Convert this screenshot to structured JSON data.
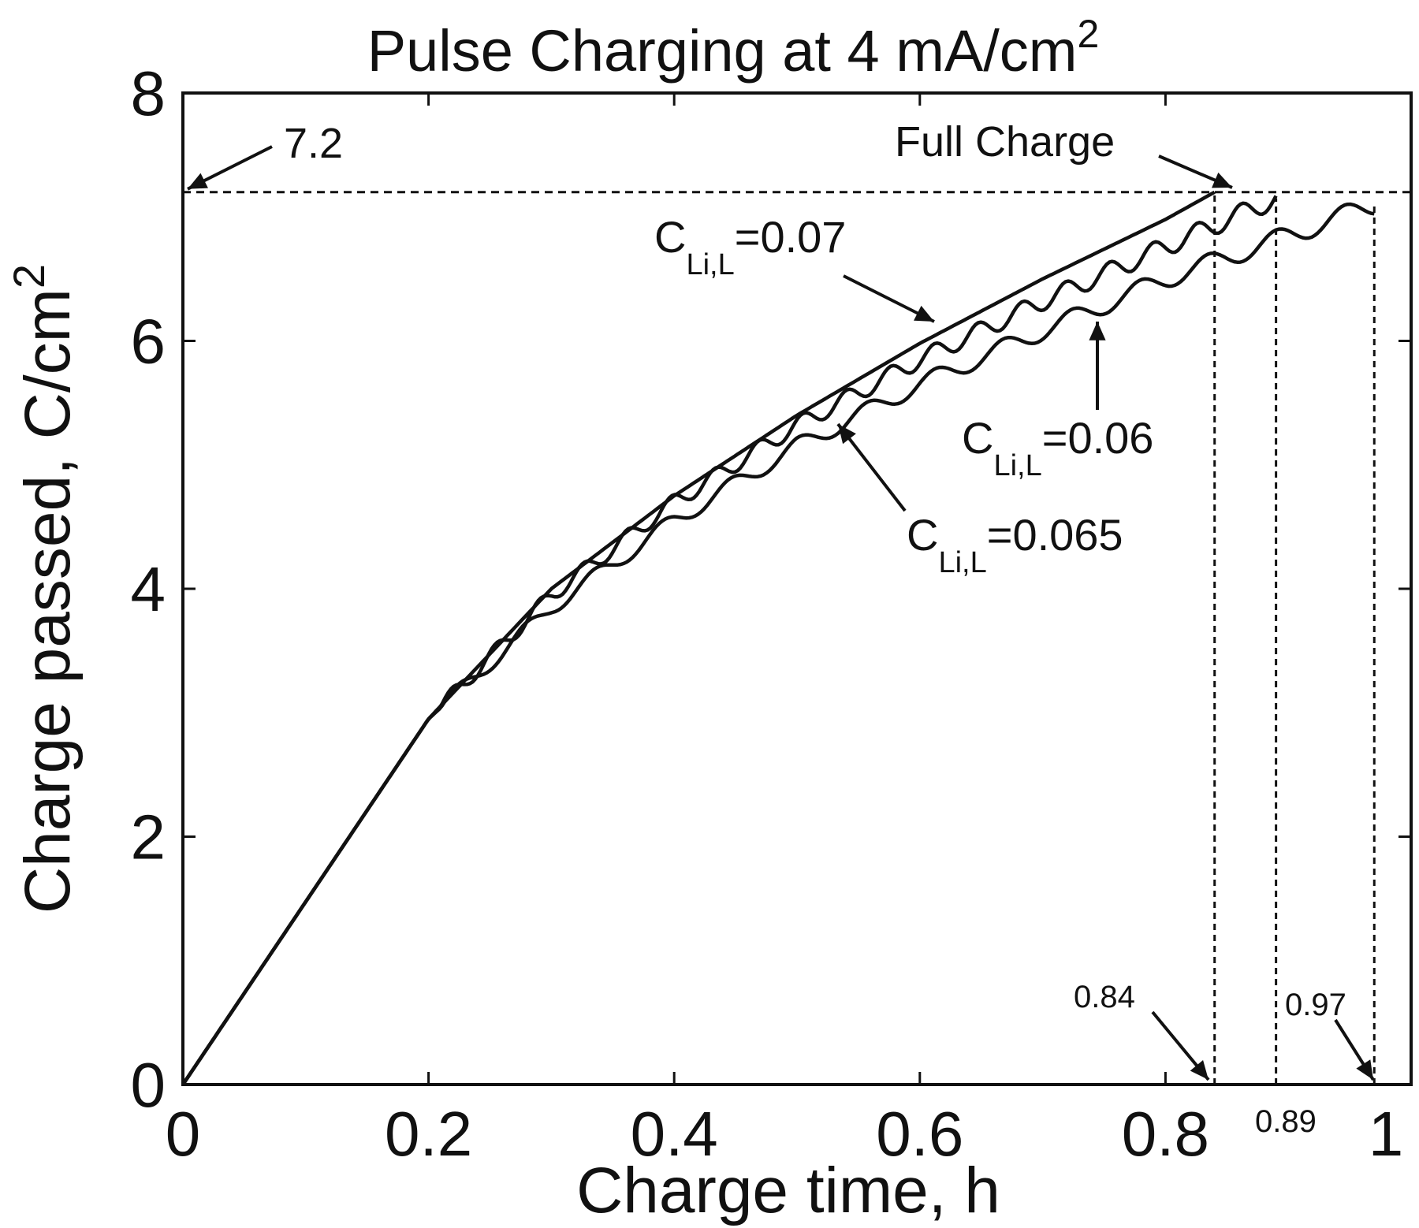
{
  "chart_data": {
    "type": "line",
    "title": "Pulse Charging at 4 mA/cm",
    "title_sup": "2",
    "xlabel": "Charge time, h",
    "ylabel": "Charge passed, C/cm",
    "ylabel_sup": "2",
    "xlim": [
      0,
      1
    ],
    "ylim": [
      0,
      8
    ],
    "xticks": [
      0,
      0.2,
      0.4,
      0.6,
      0.8,
      1
    ],
    "xtick_labels": [
      "0",
      "0.2",
      "0.4",
      "0.6",
      "0.8",
      "1"
    ],
    "yticks": [
      0,
      2,
      4,
      6,
      8
    ],
    "ytick_labels": [
      "0",
      "2",
      "4",
      "6",
      "8"
    ],
    "grid": false,
    "series": [
      {
        "label_main": "C",
        "label_sub": "Li,L",
        "label_value": "=0.07",
        "x": [
          0,
          0.2,
          0.3,
          0.4,
          0.5,
          0.6,
          0.7,
          0.8,
          0.84
        ],
        "y": [
          0,
          2.95,
          4.0,
          4.75,
          5.4,
          5.98,
          6.5,
          6.98,
          7.2
        ],
        "steps": 0
      },
      {
        "label_main": "C",
        "label_sub": "Li,L",
        "label_value": "=0.065",
        "x": [
          0,
          0.2,
          0.3,
          0.4,
          0.5,
          0.6,
          0.7,
          0.8,
          0.89
        ],
        "y": [
          0,
          2.95,
          3.95,
          4.7,
          5.32,
          5.85,
          6.32,
          6.76,
          7.15
        ],
        "steps": 28
      },
      {
        "label_main": "C",
        "label_sub": "Li,L",
        "label_value": "=0.06",
        "x": [
          0,
          0.2,
          0.3,
          0.4,
          0.5,
          0.6,
          0.7,
          0.8,
          0.9,
          0.97
        ],
        "y": [
          0,
          2.95,
          3.85,
          4.55,
          5.15,
          5.65,
          6.08,
          6.5,
          6.85,
          7.1
        ],
        "steps": 18
      }
    ],
    "reference_line": {
      "y": 7.2,
      "label": "7.2"
    },
    "full_charge_label": "Full Charge",
    "vertical_markers": [
      {
        "x": 0.84,
        "label": "0.84"
      },
      {
        "x": 0.89,
        "label": "0.89"
      },
      {
        "x": 0.97,
        "label": "0.97"
      }
    ]
  }
}
